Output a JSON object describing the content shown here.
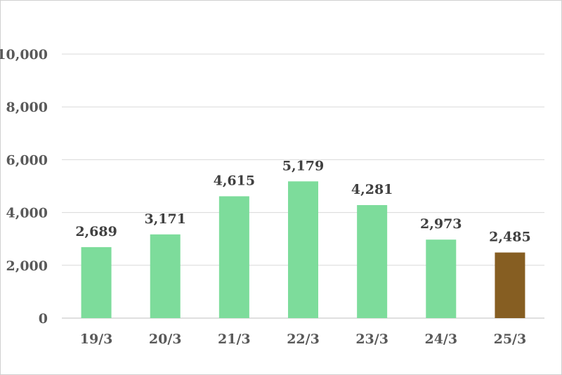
{
  "chart_data": {
    "type": "bar",
    "categories": [
      "19/3",
      "20/3",
      "21/3",
      "22/3",
      "23/3",
      "24/3",
      "25/3"
    ],
    "values": [
      2689,
      3171,
      4615,
      5179,
      4281,
      2973,
      2485
    ],
    "data_labels": [
      "2,689",
      "3,171",
      "4,615",
      "5,179",
      "4,281",
      "2,973",
      "2,485"
    ],
    "y_ticks": [
      0,
      2000,
      4000,
      6000,
      8000,
      10000
    ],
    "y_tick_labels": [
      "0",
      "2,000",
      "4,000",
      "6,000",
      "8,000",
      "10,000"
    ],
    "ylim": [
      0,
      10000
    ],
    "grid": true,
    "legend": "none",
    "colors": {
      "bar": "#7ddc9b",
      "highlight_bar": "#865e22",
      "grid": "#d9d9d9"
    },
    "highlight_index": 6
  }
}
